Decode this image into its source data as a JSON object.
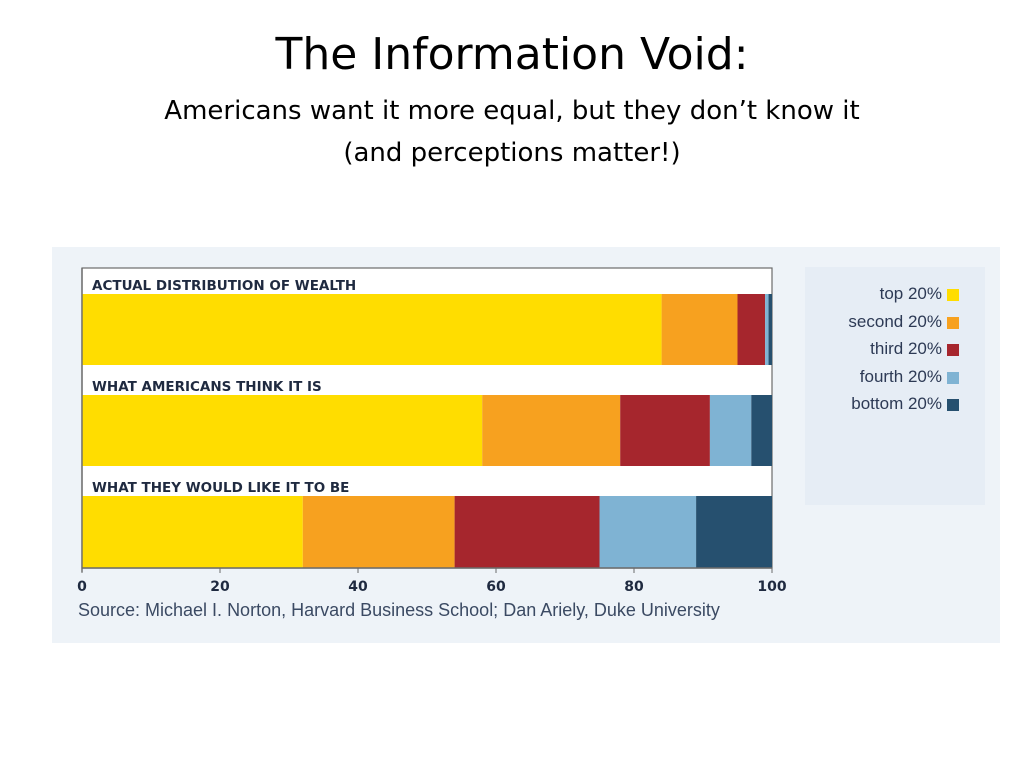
{
  "title": "The Information Void:",
  "subtitle_line1": "Americans want it more equal, but they don’t know it",
  "subtitle_line2": "(and perceptions matter!)",
  "source": "Source: Michael I. Norton, Harvard Business School; Dan Ariely, Duke University",
  "legend": [
    {
      "label": "top 20%",
      "color": "#ffdd00"
    },
    {
      "label": "second 20%",
      "color": "#f7a11f"
    },
    {
      "label": "third 20%",
      "color": "#a6262d"
    },
    {
      "label": "fourth 20%",
      "color": "#7fb3d3"
    },
    {
      "label": "bottom 20%",
      "color": "#26506f"
    }
  ],
  "chart_data": {
    "type": "bar",
    "orientation": "horizontal",
    "stacked": true,
    "categories": [
      "ACTUAL DISTRIBUTION OF WEALTH",
      "WHAT AMERICANS THINK IT IS",
      "WHAT THEY WOULD LIKE IT TO BE"
    ],
    "series": [
      {
        "name": "top 20%",
        "values": [
          84,
          58,
          32
        ]
      },
      {
        "name": "second 20%",
        "values": [
          11,
          20,
          22
        ]
      },
      {
        "name": "third 20%",
        "values": [
          4,
          13,
          21
        ]
      },
      {
        "name": "fourth 20%",
        "values": [
          0.5,
          6,
          14
        ]
      },
      {
        "name": "bottom 20%",
        "values": [
          0.5,
          3,
          11
        ]
      }
    ],
    "xlim": [
      0,
      100
    ],
    "xticks": [
      0,
      20,
      40,
      60,
      80,
      100
    ],
    "xlabel": "",
    "ylabel": "",
    "legend_position": "right",
    "grid": false
  }
}
